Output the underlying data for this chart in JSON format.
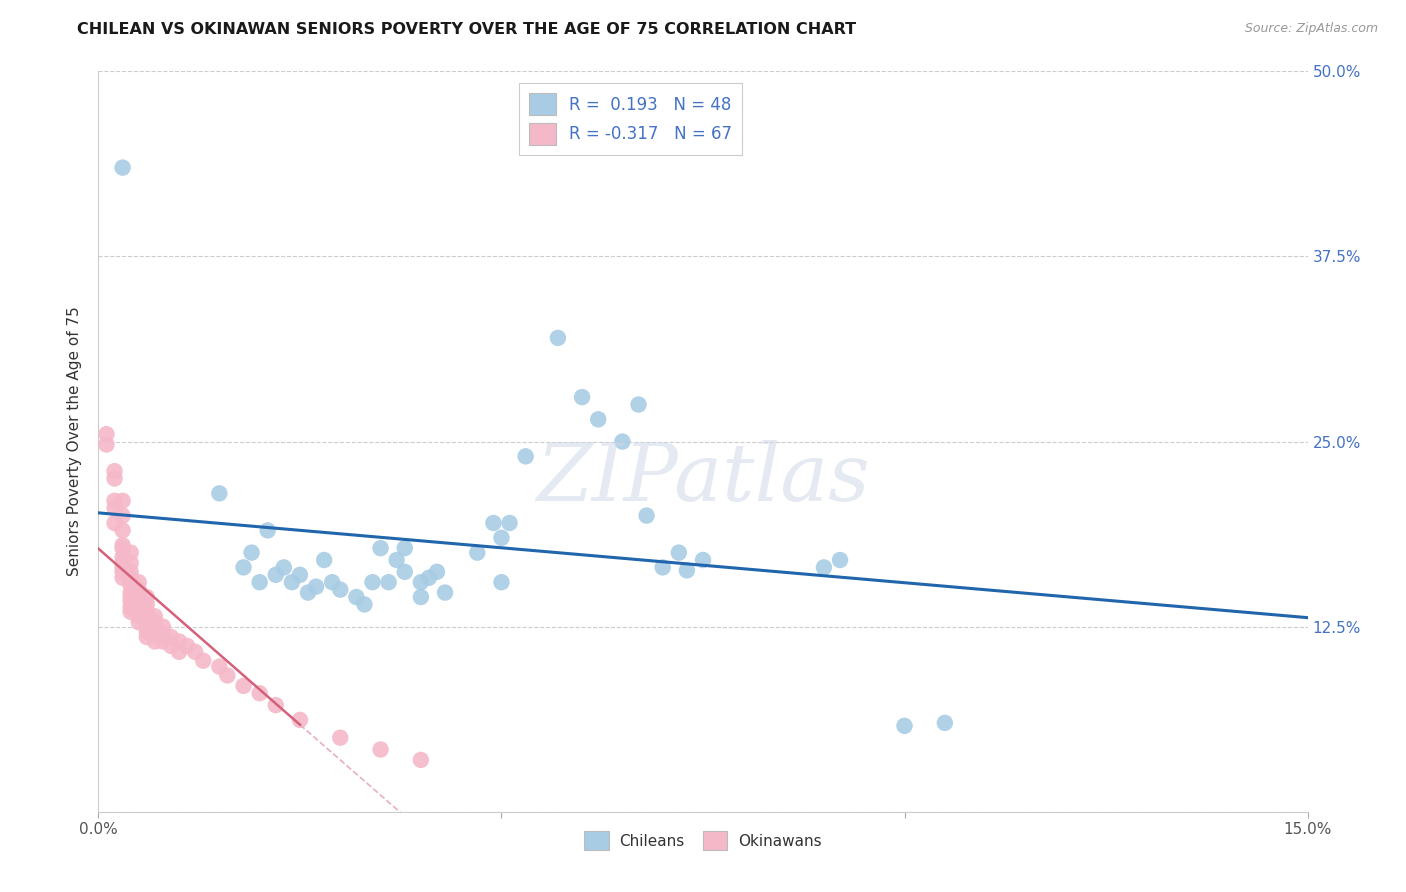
{
  "title": "CHILEAN VS OKINAWAN SENIORS POVERTY OVER THE AGE OF 75 CORRELATION CHART",
  "source": "Source: ZipAtlas.com",
  "ylabel": "Seniors Poverty Over the Age of 75",
  "xlim": [
    0.0,
    0.15
  ],
  "ylim": [
    0.0,
    0.5
  ],
  "chilean_color": "#a8cce4",
  "okinawan_color": "#f5b8c8",
  "trend_chilean_color": "#2166ac",
  "trend_okinawan_color": "#d4607a",
  "trend_okinawan_dash_color": "#e8b0bc",
  "R_chilean": 0.193,
  "N_chilean": 48,
  "R_okinawan": -0.317,
  "N_okinawan": 67,
  "watermark": "ZIPatlas",
  "chilean_points": [
    [
      0.003,
      0.435
    ],
    [
      0.015,
      0.215
    ],
    [
      0.018,
      0.165
    ],
    [
      0.019,
      0.175
    ],
    [
      0.02,
      0.155
    ],
    [
      0.021,
      0.19
    ],
    [
      0.022,
      0.16
    ],
    [
      0.023,
      0.165
    ],
    [
      0.024,
      0.155
    ],
    [
      0.025,
      0.16
    ],
    [
      0.026,
      0.148
    ],
    [
      0.027,
      0.152
    ],
    [
      0.028,
      0.17
    ],
    [
      0.029,
      0.155
    ],
    [
      0.03,
      0.15
    ],
    [
      0.032,
      0.145
    ],
    [
      0.033,
      0.14
    ],
    [
      0.034,
      0.155
    ],
    [
      0.035,
      0.178
    ],
    [
      0.036,
      0.155
    ],
    [
      0.037,
      0.17
    ],
    [
      0.038,
      0.178
    ],
    [
      0.038,
      0.162
    ],
    [
      0.04,
      0.155
    ],
    [
      0.04,
      0.145
    ],
    [
      0.041,
      0.158
    ],
    [
      0.042,
      0.162
    ],
    [
      0.043,
      0.148
    ],
    [
      0.047,
      0.175
    ],
    [
      0.049,
      0.195
    ],
    [
      0.05,
      0.185
    ],
    [
      0.05,
      0.155
    ],
    [
      0.051,
      0.195
    ],
    [
      0.053,
      0.24
    ],
    [
      0.057,
      0.32
    ],
    [
      0.06,
      0.28
    ],
    [
      0.062,
      0.265
    ],
    [
      0.065,
      0.25
    ],
    [
      0.067,
      0.275
    ],
    [
      0.068,
      0.2
    ],
    [
      0.07,
      0.165
    ],
    [
      0.072,
      0.175
    ],
    [
      0.073,
      0.163
    ],
    [
      0.075,
      0.17
    ],
    [
      0.09,
      0.165
    ],
    [
      0.092,
      0.17
    ],
    [
      0.1,
      0.058
    ],
    [
      0.105,
      0.06
    ]
  ],
  "okinawan_points": [
    [
      0.001,
      0.255
    ],
    [
      0.001,
      0.248
    ],
    [
      0.002,
      0.23
    ],
    [
      0.002,
      0.225
    ],
    [
      0.002,
      0.21
    ],
    [
      0.002,
      0.205
    ],
    [
      0.002,
      0.195
    ],
    [
      0.003,
      0.21
    ],
    [
      0.003,
      0.2
    ],
    [
      0.003,
      0.19
    ],
    [
      0.003,
      0.18
    ],
    [
      0.003,
      0.178
    ],
    [
      0.003,
      0.172
    ],
    [
      0.003,
      0.168
    ],
    [
      0.003,
      0.165
    ],
    [
      0.003,
      0.162
    ],
    [
      0.003,
      0.158
    ],
    [
      0.004,
      0.175
    ],
    [
      0.004,
      0.168
    ],
    [
      0.004,
      0.162
    ],
    [
      0.004,
      0.158
    ],
    [
      0.004,
      0.153
    ],
    [
      0.004,
      0.148
    ],
    [
      0.004,
      0.145
    ],
    [
      0.004,
      0.142
    ],
    [
      0.004,
      0.138
    ],
    [
      0.004,
      0.135
    ],
    [
      0.005,
      0.155
    ],
    [
      0.005,
      0.15
    ],
    [
      0.005,
      0.145
    ],
    [
      0.005,
      0.14
    ],
    [
      0.005,
      0.138
    ],
    [
      0.005,
      0.135
    ],
    [
      0.005,
      0.132
    ],
    [
      0.005,
      0.128
    ],
    [
      0.006,
      0.145
    ],
    [
      0.006,
      0.14
    ],
    [
      0.006,
      0.135
    ],
    [
      0.006,
      0.13
    ],
    [
      0.006,
      0.128
    ],
    [
      0.006,
      0.125
    ],
    [
      0.006,
      0.122
    ],
    [
      0.006,
      0.118
    ],
    [
      0.007,
      0.132
    ],
    [
      0.007,
      0.128
    ],
    [
      0.007,
      0.124
    ],
    [
      0.007,
      0.12
    ],
    [
      0.007,
      0.115
    ],
    [
      0.008,
      0.125
    ],
    [
      0.008,
      0.12
    ],
    [
      0.008,
      0.115
    ],
    [
      0.009,
      0.118
    ],
    [
      0.009,
      0.112
    ],
    [
      0.01,
      0.115
    ],
    [
      0.01,
      0.108
    ],
    [
      0.011,
      0.112
    ],
    [
      0.012,
      0.108
    ],
    [
      0.013,
      0.102
    ],
    [
      0.015,
      0.098
    ],
    [
      0.016,
      0.092
    ],
    [
      0.018,
      0.085
    ],
    [
      0.02,
      0.08
    ],
    [
      0.022,
      0.072
    ],
    [
      0.025,
      0.062
    ],
    [
      0.03,
      0.05
    ],
    [
      0.035,
      0.042
    ],
    [
      0.04,
      0.035
    ]
  ]
}
